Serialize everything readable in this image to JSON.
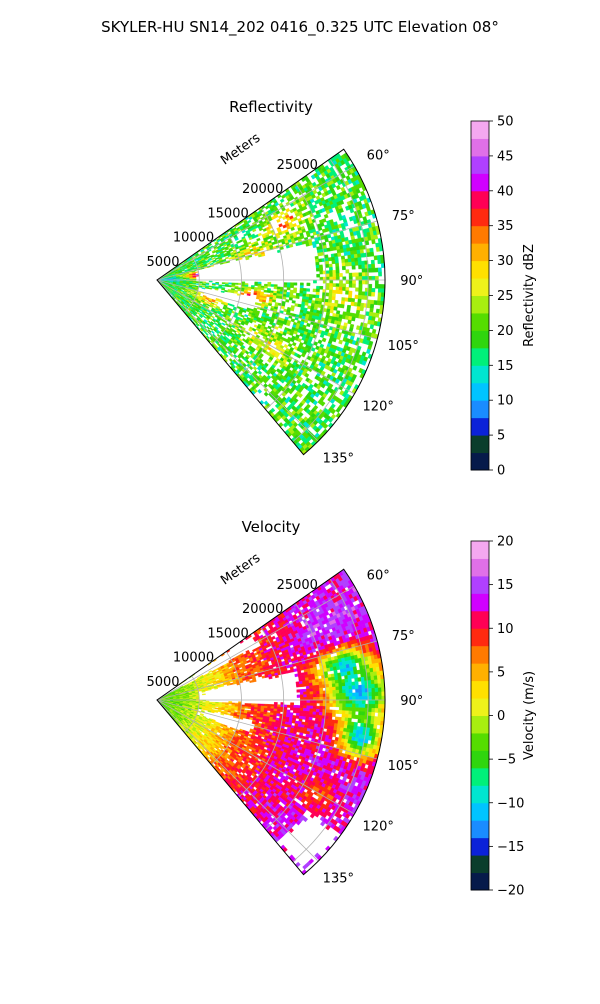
{
  "title": "SKYLER-HU  SN14_202  0416_0.325 UTC Elevation 08°",
  "colors": {
    "axis": "#000000",
    "grid": "#b0b0b0"
  },
  "chart_data": [
    {
      "type": "heatmap",
      "projection": "polar-sector",
      "title": "Reflectivity",
      "radial_label": "Meters",
      "radial_ticks": [
        5000,
        10000,
        15000,
        20000,
        25000
      ],
      "radial_tick_labels": [
        "5000",
        "10000",
        "15000",
        "20000",
        "25000"
      ],
      "r_range": [
        0,
        27000
      ],
      "azimuth_range": [
        55,
        140
      ],
      "azimuth_ticks": [
        60,
        75,
        90,
        105,
        120,
        135
      ],
      "azimuth_tick_labels": [
        "60°",
        "75°",
        "90°",
        "105°",
        "120°",
        "135°"
      ],
      "grid": true,
      "colorbar": {
        "label": "Reflectivity dBZ",
        "range": [
          0,
          50
        ],
        "ticks": [
          0,
          5,
          10,
          15,
          20,
          25,
          30,
          35,
          40,
          45,
          50
        ],
        "tick_labels": [
          "0",
          "5",
          "10",
          "15",
          "20",
          "25",
          "30",
          "35",
          "40",
          "45",
          "50"
        ],
        "stops": [
          [
            0,
            "#061a4a"
          ],
          [
            2.5,
            "#0a3d2c"
          ],
          [
            5,
            "#0b22d8"
          ],
          [
            7.5,
            "#1a8cff"
          ],
          [
            10,
            "#00c4ff"
          ],
          [
            12.5,
            "#00e5d0"
          ],
          [
            15,
            "#00f07a"
          ],
          [
            17.5,
            "#2fd60e"
          ],
          [
            20,
            "#55dd00"
          ],
          [
            22.5,
            "#a8ee10"
          ],
          [
            25,
            "#eef21a"
          ],
          [
            27.5,
            "#ffe000"
          ],
          [
            30,
            "#ffb000"
          ],
          [
            32.5,
            "#ff7a00"
          ],
          [
            35,
            "#ff2a10"
          ],
          [
            37.5,
            "#ff0055"
          ],
          [
            40,
            "#d000ff"
          ],
          [
            42.5,
            "#b040ff"
          ],
          [
            45,
            "#e070e8"
          ],
          [
            47.5,
            "#f4a8f0"
          ],
          [
            50,
            "#fce8fa"
          ]
        ]
      },
      "field": {
        "base": 19,
        "noise": 5,
        "coverage": [
          [
            0,
            27000,
            0.65
          ]
        ],
        "clear_regions": [
          {
            "az": [
              76,
              92
            ],
            "r": [
              4500,
              19000
            ]
          },
          {
            "az": [
              100,
              108
            ],
            "r": [
              5000,
              12000
            ]
          }
        ],
        "cells": [
          {
            "az": 83,
            "r": 5200,
            "peak": 40,
            "spread_az": 5,
            "spread_r": 2200
          },
          {
            "az": 66,
            "r": 16500,
            "peak": 33,
            "spread_az": 4,
            "spread_r": 2500
          },
          {
            "az": 75,
            "r": 12000,
            "peak": 27,
            "spread_az": 6,
            "spread_r": 3000
          },
          {
            "az": 100,
            "r": 11500,
            "peak": 36,
            "spread_az": 4,
            "spread_r": 2500
          },
          {
            "az": 110,
            "r": 6500,
            "peak": 31,
            "spread_az": 5,
            "spread_r": 2200
          },
          {
            "az": 120,
            "r": 15000,
            "peak": 27,
            "spread_az": 6,
            "spread_r": 3500
          },
          {
            "az": 95,
            "r": 22000,
            "peak": 26,
            "spread_az": 8,
            "spread_r": 3000
          },
          {
            "az": 88,
            "r": 1500,
            "peak": 12,
            "spread_az": 10,
            "spread_r": 1500
          }
        ]
      }
    },
    {
      "type": "heatmap",
      "projection": "polar-sector",
      "title": "Velocity",
      "radial_label": "Meters",
      "radial_ticks": [
        5000,
        10000,
        15000,
        20000,
        25000
      ],
      "radial_tick_labels": [
        "5000",
        "10000",
        "15000",
        "20000",
        "25000"
      ],
      "r_range": [
        0,
        27000
      ],
      "azimuth_range": [
        55,
        140
      ],
      "azimuth_ticks": [
        60,
        75,
        90,
        105,
        120,
        135
      ],
      "azimuth_tick_labels": [
        "60°",
        "75°",
        "90°",
        "105°",
        "120°",
        "135°"
      ],
      "grid": true,
      "colorbar": {
        "label": "Velocity (m/s)",
        "range": [
          -20,
          20
        ],
        "ticks": [
          -20,
          -15,
          -10,
          -5,
          0,
          5,
          10,
          15,
          20
        ],
        "tick_labels": [
          "−20",
          "−15",
          "−10",
          "−5",
          "0",
          "5",
          "10",
          "15",
          "20"
        ],
        "stops": [
          [
            -20,
            "#061a4a"
          ],
          [
            -18,
            "#0a3d2c"
          ],
          [
            -16,
            "#0b22d8"
          ],
          [
            -14,
            "#1a8cff"
          ],
          [
            -12,
            "#00c4ff"
          ],
          [
            -10,
            "#00e5d0"
          ],
          [
            -8,
            "#00f07a"
          ],
          [
            -6,
            "#2fd60e"
          ],
          [
            -4,
            "#55dd00"
          ],
          [
            -2,
            "#a8ee10"
          ],
          [
            0,
            "#eef21a"
          ],
          [
            2,
            "#ffe000"
          ],
          [
            4,
            "#ffb000"
          ],
          [
            6,
            "#ff7a00"
          ],
          [
            8,
            "#ff2a10"
          ],
          [
            10,
            "#ff0055"
          ],
          [
            12,
            "#d000ff"
          ],
          [
            14,
            "#b040ff"
          ],
          [
            16,
            "#e070e8"
          ],
          [
            18,
            "#f4a8f0"
          ],
          [
            20,
            "#fce8fa"
          ]
        ]
      },
      "field": {
        "base": 9,
        "noise": 2.5,
        "coverage": [
          [
            0,
            27000,
            0.92
          ]
        ],
        "clear_regions": [
          {
            "az": [
              78,
              92
            ],
            "r": [
              5000,
              17000
            ]
          },
          {
            "az": [
              102,
              110
            ],
            "r": [
              5000,
              12000
            ]
          },
          {
            "az": [
              55,
              62
            ],
            "r": [
              0,
              14000
            ]
          },
          {
            "az": [
              126,
              140
            ],
            "r": [
              22000,
              27000
            ]
          }
        ],
        "radial_trend": [
          [
            0,
            -4
          ],
          [
            3000,
            -2
          ],
          [
            7000,
            2
          ],
          [
            11000,
            8
          ],
          [
            16000,
            11
          ],
          [
            21000,
            13
          ],
          [
            27000,
            14
          ]
        ],
        "cells": [
          {
            "az": 88,
            "r": 24000,
            "peak": -12,
            "spread_az": 7,
            "spread_r": 3500
          },
          {
            "az": 80,
            "r": 22500,
            "peak": -10,
            "spread_az": 5,
            "spread_r": 3000
          },
          {
            "az": 100,
            "r": 24500,
            "peak": -11,
            "spread_az": 6,
            "spread_r": 2500
          },
          {
            "az": 66,
            "r": 21000,
            "peak": 15,
            "spread_az": 5,
            "spread_r": 3000
          },
          {
            "az": 120,
            "r": 22000,
            "peak": 9,
            "spread_az": 6,
            "spread_r": 3000
          }
        ]
      }
    }
  ]
}
